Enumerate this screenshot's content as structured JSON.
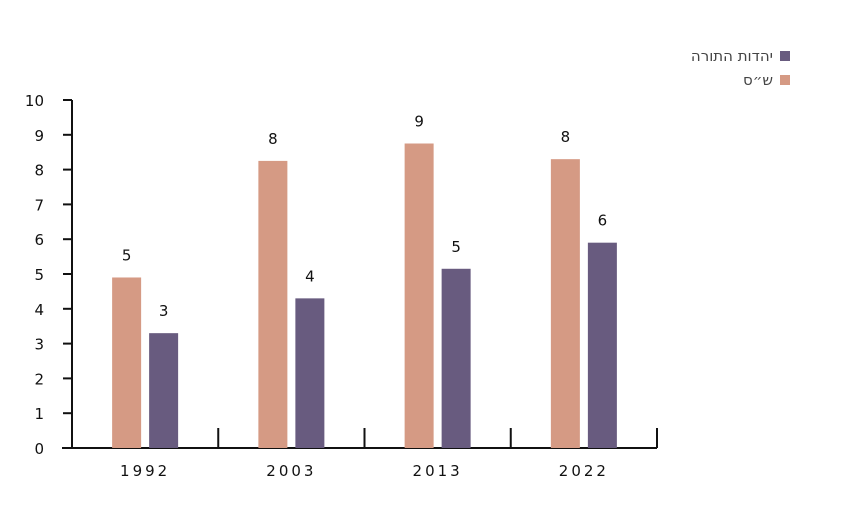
{
  "chart_data": {
    "type": "bar",
    "categories": [
      "1992",
      "2003",
      "2013",
      "2022"
    ],
    "series": [
      {
        "name": "ש״ס",
        "color": "#d59a84",
        "values": [
          4.9,
          8.25,
          8.75,
          8.3
        ],
        "labels": [
          "5",
          "8",
          "9",
          "8"
        ]
      },
      {
        "name": "יהדות התורה",
        "color": "#685b7f",
        "values": [
          3.3,
          4.3,
          5.15,
          5.9
        ],
        "labels": [
          "3",
          "4",
          "5",
          "6"
        ]
      }
    ],
    "ylim": [
      0,
      10
    ],
    "yticks": [
      "0",
      "1",
      "2",
      "3",
      "4",
      "5",
      "6",
      "7",
      "8",
      "9",
      "10"
    ],
    "legend_position": "top-right",
    "grid": false
  }
}
